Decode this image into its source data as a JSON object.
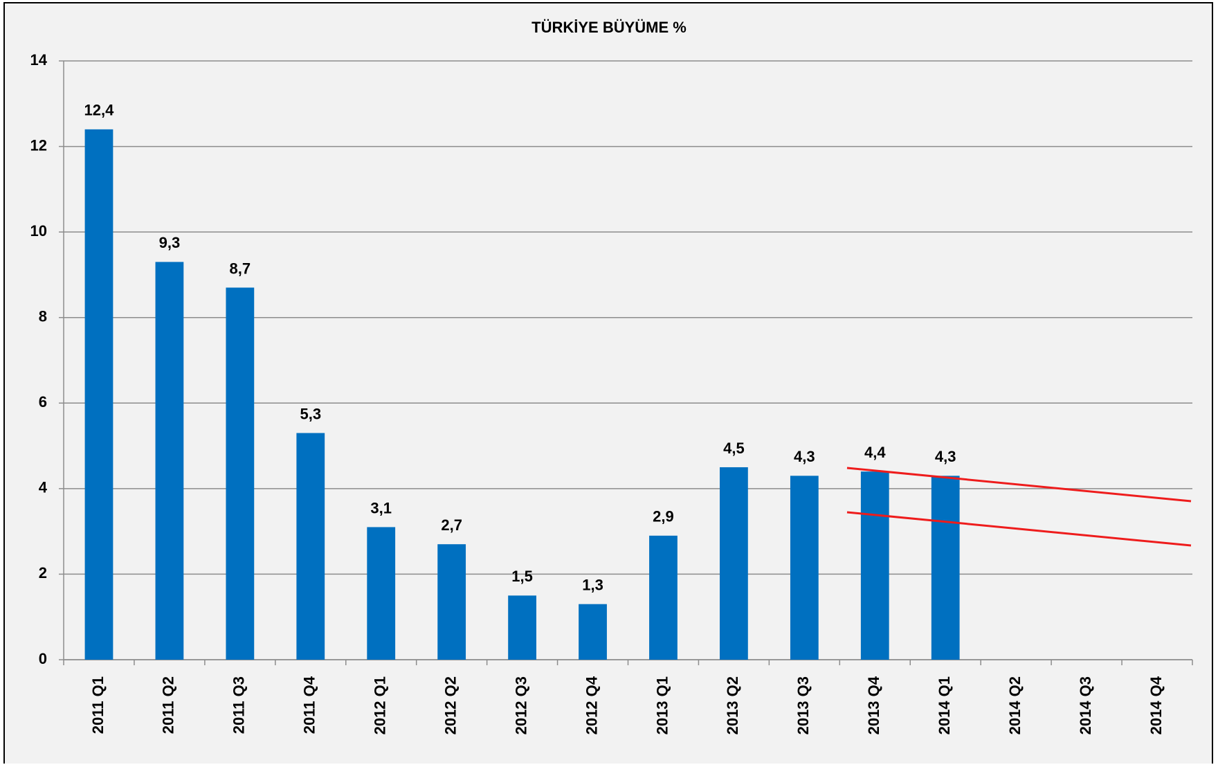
{
  "chart_data": {
    "type": "bar",
    "title": "TÜRKİYE BÜYÜME %",
    "categories": [
      "2011 Q1",
      "2011 Q2",
      "2011 Q3",
      "2011 Q4",
      "2012 Q1",
      "2012 Q2",
      "2012 Q3",
      "2012 Q4",
      "2013 Q1",
      "2013 Q2",
      "2013 Q3",
      "2013 Q4",
      "2014 Q1",
      "2014 Q2",
      "2014 Q3",
      "2014 Q4"
    ],
    "values": [
      12.4,
      9.3,
      8.7,
      5.3,
      3.1,
      2.7,
      1.5,
      1.3,
      2.9,
      4.5,
      4.3,
      4.4,
      4.3,
      null,
      null,
      null
    ],
    "value_labels": [
      "12,4",
      "9,3",
      "8,7",
      "5,3",
      "3,1",
      "2,7",
      "1,5",
      "1,3",
      "2,9",
      "4,5",
      "4,3",
      "4,4",
      "4,3",
      null,
      null,
      null
    ],
    "color": "#0070c0",
    "ylim": [
      0,
      14
    ],
    "yticks": [
      0,
      2,
      4,
      6,
      8,
      10,
      12,
      14
    ],
    "grid": true
  }
}
